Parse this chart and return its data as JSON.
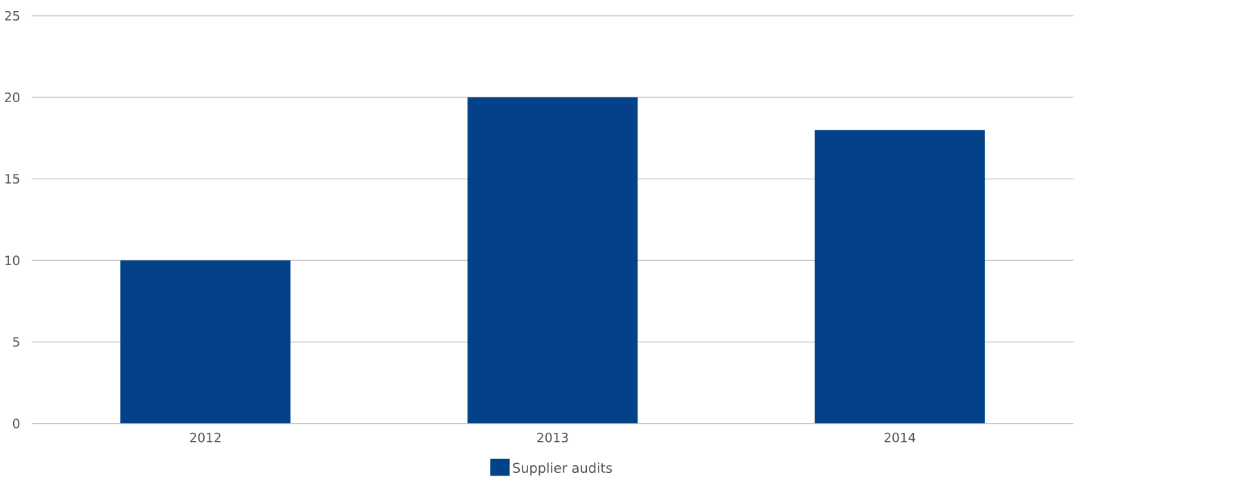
{
  "chart_data": {
    "type": "bar",
    "categories": [
      "2012",
      "2013",
      "2014"
    ],
    "series": [
      {
        "name": "Supplier audits",
        "color": "#034189",
        "values": [
          10,
          20,
          18
        ]
      }
    ],
    "ylim": [
      0,
      25
    ],
    "yticks": [
      0,
      5,
      10,
      15,
      20,
      25
    ],
    "grid": "y",
    "legend": "bottom"
  }
}
